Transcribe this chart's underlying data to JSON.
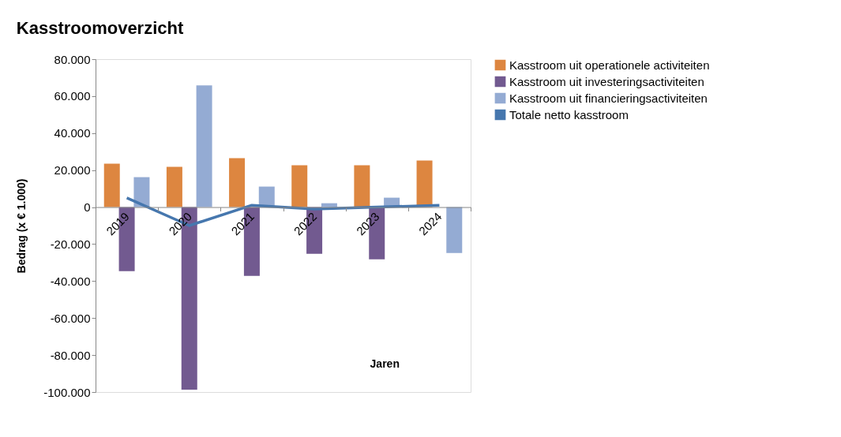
{
  "chart_data": {
    "type": "bar",
    "title": "Kasstroomoverzicht",
    "xlabel": "Jaren",
    "ylabel": "Bedrag (x € 1.000)",
    "categories": [
      "2019",
      "2020",
      "2021",
      "2022",
      "2023",
      "2024"
    ],
    "series": [
      {
        "name": "Kasstroom uit operationele activiteiten",
        "color": "#dd8640",
        "values": [
          23500,
          21800,
          26500,
          22600,
          22600,
          25200
        ]
      },
      {
        "name": "Kasstroom uit investeringsactiviteiten",
        "color": "#725a90",
        "values": [
          -34600,
          -98700,
          -37200,
          -25200,
          -28200,
          null
        ]
      },
      {
        "name": "Kasstroom uit financieringsactiviteiten",
        "color": "#94abd3",
        "values": [
          16200,
          65800,
          11100,
          2100,
          5100,
          -24800
        ]
      },
      {
        "name": "Totale netto kasstroom",
        "color": "#4677ae",
        "type": "line",
        "values": [
          5000,
          -10000,
          1000,
          -1000,
          0,
          1000
        ]
      }
    ],
    "ylim": [
      -100000,
      80000
    ],
    "yticks": [
      {
        "value": -100000,
        "label": "-100.000"
      },
      {
        "value": -80000,
        "label": "-80.000"
      },
      {
        "value": -60000,
        "label": "-60.000"
      },
      {
        "value": -40000,
        "label": "-40.000"
      },
      {
        "value": -20000,
        "label": "-20.000"
      },
      {
        "value": 0,
        "label": "0"
      },
      {
        "value": 20000,
        "label": "20.000"
      },
      {
        "value": 40000,
        "label": "40.000"
      },
      {
        "value": 60000,
        "label": "60.000"
      },
      {
        "value": 80000,
        "label": "80.000"
      }
    ],
    "grid": false,
    "legend": "right"
  }
}
